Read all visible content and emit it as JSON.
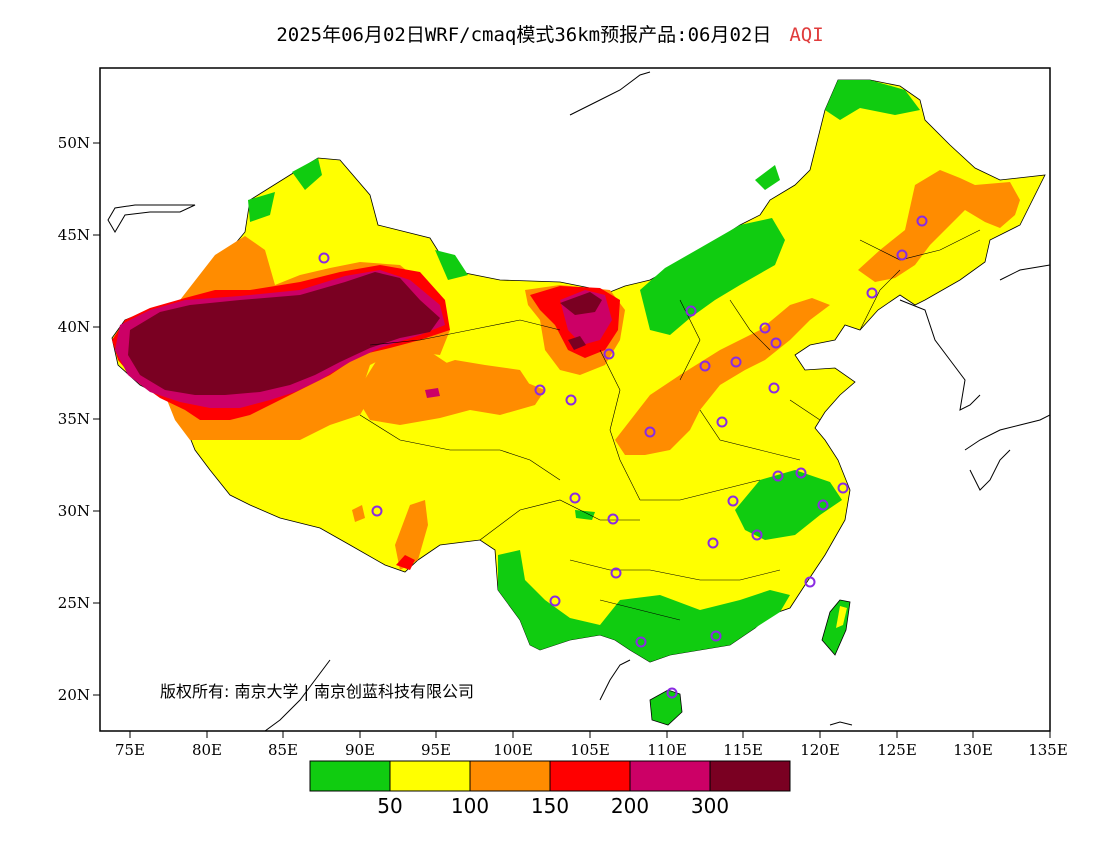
{
  "title": {
    "main": "2025年06月02日WRF/cmaq模式36km预报产品:06月02日",
    "variable": "AQI"
  },
  "axes": {
    "x_ticks": [
      "75E",
      "80E",
      "85E",
      "90E",
      "95E",
      "100E",
      "105E",
      "110E",
      "115E",
      "120E",
      "125E",
      "130E",
      "135E"
    ],
    "y_ticks": [
      "50N",
      "45N",
      "40N",
      "35N",
      "30N",
      "25N",
      "20N"
    ]
  },
  "legend": {
    "thresholds": [
      "50",
      "100",
      "150",
      "200",
      "300"
    ],
    "colors": [
      "#10cc10",
      "#ffff00",
      "#ff8c00",
      "#ff0000",
      "#cc0066",
      "#7a0022"
    ]
  },
  "copyright": "版权所有: 南京大学 | 南京创蓝科技有限公司"
}
